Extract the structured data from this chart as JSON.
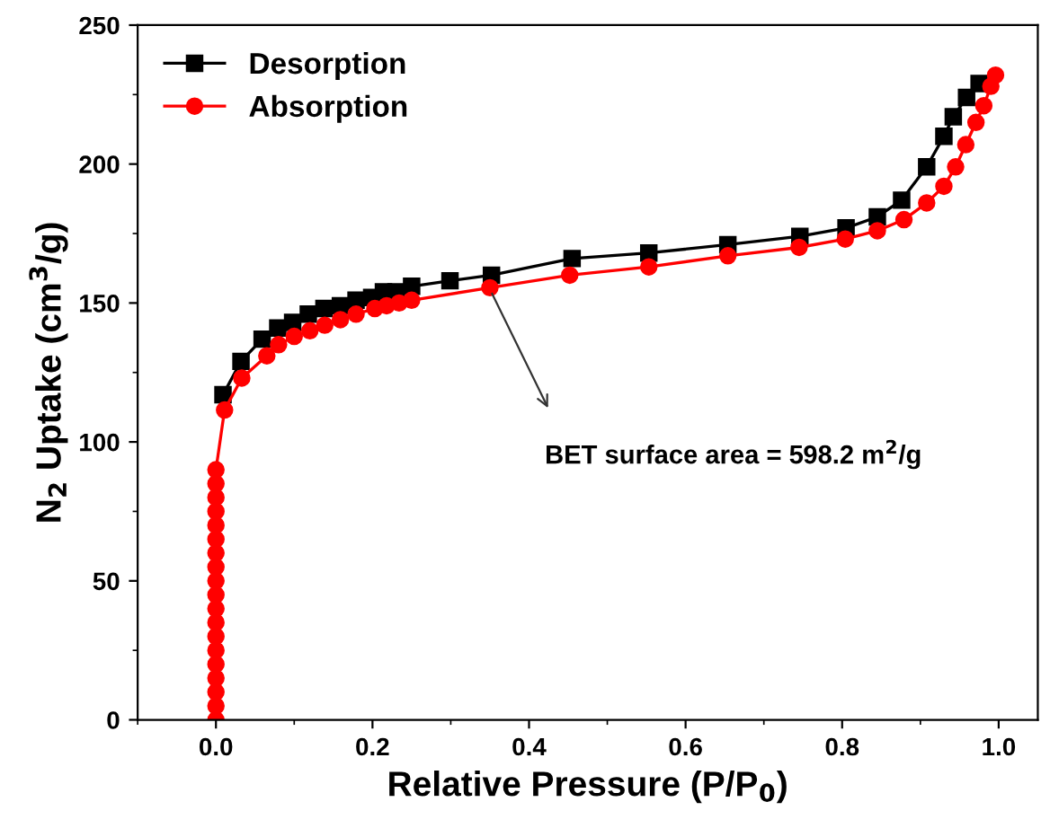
{
  "chart_data": {
    "type": "line",
    "xlabel": "Relative Pressure (P/P$_{0}$)",
    "ylabel": "N$_{2}$ Uptake (cm$^{3}$/g)",
    "xlim": [
      -0.1,
      1.05
    ],
    "xticks": [
      {
        "value": 0,
        "label": "0.0"
      },
      0.2,
      0.4,
      0.6,
      0.8,
      {
        "value": 1,
        "label": "1.0"
      }
    ],
    "ylim": [
      0,
      250
    ],
    "yticks": [
      0,
      50,
      100,
      150,
      200,
      250
    ],
    "grid": false,
    "legend": "top left",
    "line_style": "solid",
    "annotations": [
      {
        "text": "BET surface area = 598.2 m$^{2}$/g",
        "x": 0.35,
        "y": 155
      }
    ],
    "series": [
      {
        "name": "Desorption",
        "color": "#000000",
        "marker": "square",
        "x": [
          0.009,
          0.032,
          0.059,
          0.079,
          0.098,
          0.118,
          0.138,
          0.159,
          0.179,
          0.199,
          0.214,
          0.23,
          0.25,
          0.299,
          0.352,
          0.455,
          0.553,
          0.654,
          0.746,
          0.805,
          0.845,
          0.876,
          0.908,
          0.93,
          0.942,
          0.959,
          0.975
        ],
        "values": [
          117,
          129,
          137,
          141,
          143,
          146,
          148,
          149,
          151,
          152,
          154,
          154,
          156,
          158,
          160,
          166,
          168,
          171,
          174,
          177,
          181,
          187,
          199,
          210,
          217,
          224,
          229
        ]
      },
      {
        "name": "Absorption",
        "color": "#ff0000",
        "marker": "circle",
        "x": [
          0.0,
          0.0,
          0.0,
          0.0,
          0.0,
          0.0,
          0.0,
          0.0,
          0.0,
          0.0,
          0.0,
          0.0,
          0.0,
          0.0,
          0.0,
          0.0,
          0.0,
          0.0,
          0.0,
          0.011,
          0.033,
          0.065,
          0.08,
          0.1,
          0.12,
          0.139,
          0.159,
          0.179,
          0.203,
          0.218,
          0.234,
          0.25,
          0.35,
          0.452,
          0.553,
          0.654,
          0.745,
          0.804,
          0.845,
          0.879,
          0.908,
          0.93,
          0.945,
          0.958,
          0.971,
          0.981,
          0.99,
          0.996
        ],
        "values": [
          0,
          5,
          10,
          15,
          20,
          25,
          30,
          35,
          40,
          45,
          50,
          55,
          60,
          65,
          70,
          75,
          80,
          85,
          90,
          111.5,
          123,
          131,
          135,
          138,
          140,
          142,
          144,
          146,
          148,
          149,
          150,
          151,
          155.5,
          160,
          163,
          167,
          170,
          173,
          176,
          180,
          186,
          192,
          199,
          207,
          215,
          221,
          228,
          232
        ]
      }
    ]
  }
}
